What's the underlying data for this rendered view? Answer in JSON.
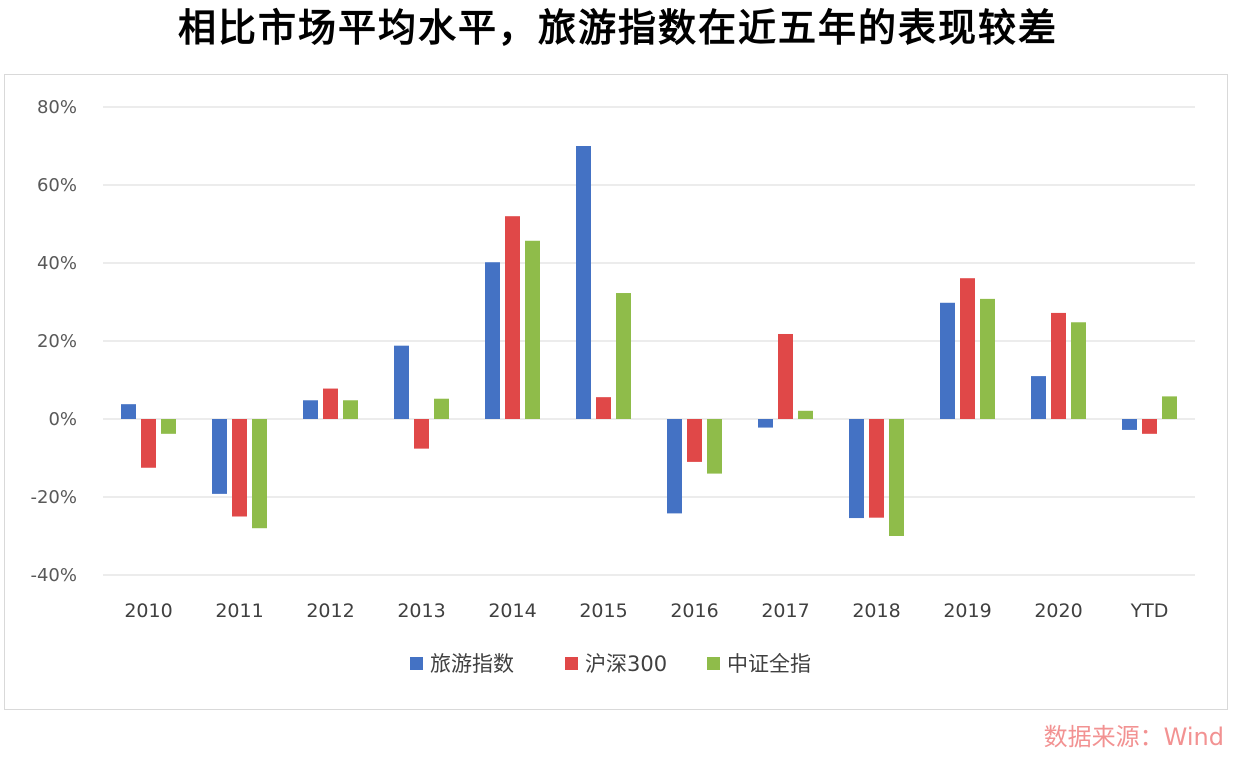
{
  "title": "相比市场平均水平，旅游指数在近五年的表现较差",
  "source": "数据来源：Wind",
  "chart_data": {
    "type": "bar",
    "title": "相比市场平均水平，旅游指数在近五年的表现较差",
    "categories": [
      "2010",
      "2011",
      "2012",
      "2013",
      "2014",
      "2015",
      "2016",
      "2017",
      "2018",
      "2019",
      "2020",
      "YTD"
    ],
    "series": [
      {
        "name": "旅游指数",
        "color": "#4472c4",
        "values": [
          3.8,
          -19.2,
          4.8,
          18.8,
          40.2,
          70.0,
          -24.2,
          -2.2,
          -25.4,
          29.8,
          11.0,
          -2.8
        ]
      },
      {
        "name": "沪深300",
        "color": "#e04848",
        "values": [
          -12.5,
          -25.0,
          7.8,
          -7.6,
          52.0,
          5.6,
          -11.0,
          21.8,
          -25.3,
          36.1,
          27.2,
          -3.8
        ]
      },
      {
        "name": "中证全指",
        "color": "#8fbc4a",
        "values": [
          -3.8,
          -28.0,
          4.8,
          5.2,
          45.7,
          32.3,
          -14.0,
          2.1,
          -30.0,
          30.8,
          24.8,
          5.8
        ]
      }
    ],
    "ylim": [
      -40,
      80
    ],
    "yticks": [
      "-40%",
      "-20%",
      "0%",
      "20%",
      "40%",
      "60%",
      "80%"
    ],
    "ytick_values": [
      -40,
      -20,
      0,
      20,
      40,
      60,
      80
    ],
    "grid": true,
    "legend_position": "bottom"
  }
}
